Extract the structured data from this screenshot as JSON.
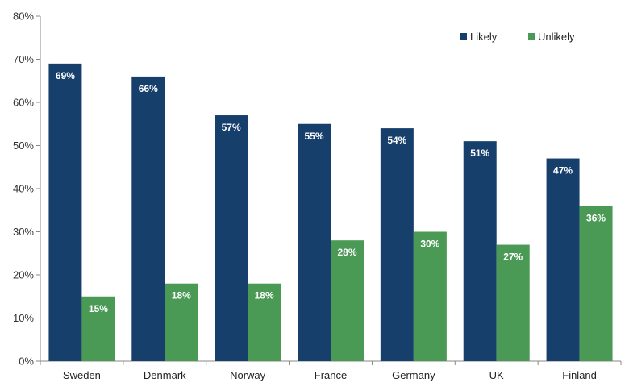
{
  "chart_data": {
    "type": "bar",
    "categories": [
      "Sweden",
      "Denmark",
      "Norway",
      "France",
      "Germany",
      "UK",
      "Finland"
    ],
    "series": [
      {
        "name": "Likely",
        "color": "#173F6B",
        "values": [
          69,
          66,
          57,
          55,
          54,
          51,
          47
        ]
      },
      {
        "name": "Unlikely",
        "color": "#4A9A55",
        "values": [
          15,
          18,
          18,
          28,
          30,
          27,
          36
        ]
      }
    ],
    "ylim": [
      0,
      80
    ],
    "yticks": [
      0,
      10,
      20,
      30,
      40,
      50,
      60,
      70,
      80
    ],
    "value_suffix": "%",
    "grid": false,
    "legend_position": "top-right"
  }
}
